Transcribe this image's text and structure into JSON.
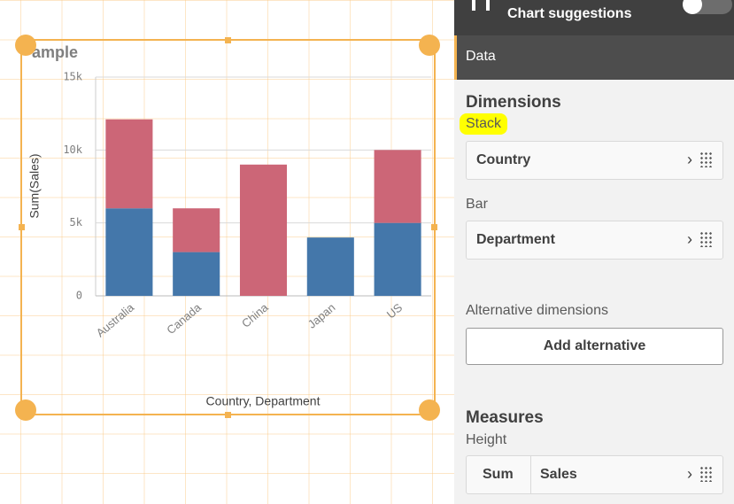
{
  "chart_data": {
    "type": "stacked-bar",
    "title": "ample",
    "x_label": "Country, Department",
    "y_label": "Sum(Sales)",
    "categories": [
      "Australia",
      "Canada",
      "China",
      "Japan",
      "US"
    ],
    "series": [
      {
        "color": "#4477aa",
        "values": [
          6000,
          3000,
          null,
          4000,
          5000
        ]
      },
      {
        "color": "#cc6677",
        "values": [
          6100,
          3000,
          9000,
          null,
          5000
        ]
      }
    ],
    "ylim": [
      0,
      15000
    ],
    "yticks": [
      0,
      {
        "value": 5000,
        "label": "5k"
      },
      {
        "value": 10000,
        "label": "10k"
      },
      {
        "value": 15000,
        "label": "15k"
      }
    ],
    "grid": true
  },
  "panel": {
    "header": "Chart suggestions",
    "tab": "Data",
    "dimensions_title": "Dimensions",
    "stack_label": "Stack",
    "stack_field": "Country",
    "bar_label": "Bar",
    "bar_field": "Department",
    "alternative_label": "Alternative dimensions",
    "add_alternative": "Add alternative",
    "measures_title": "Measures",
    "height_label": "Height",
    "aggregation": "Sum",
    "measure_field": "Sales"
  }
}
